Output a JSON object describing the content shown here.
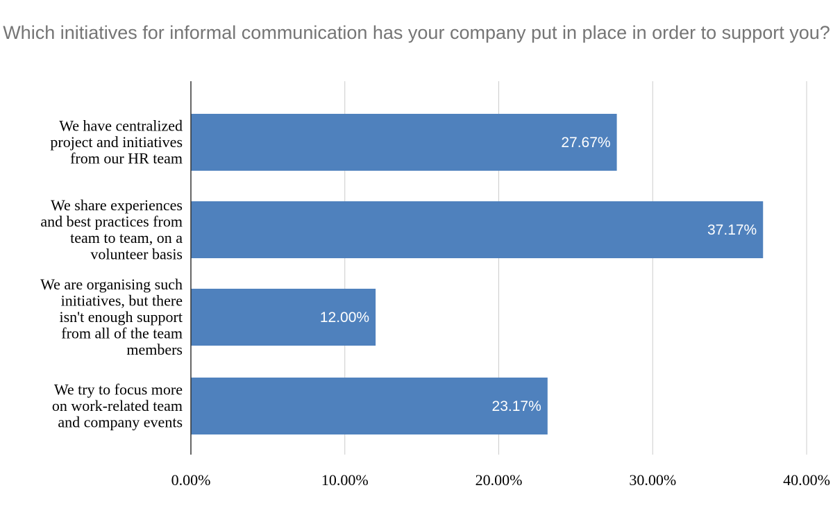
{
  "chart_data": {
    "type": "bar",
    "orientation": "horizontal",
    "title": "Which initiatives for informal communication has your company put in place in order to support you?",
    "categories": [
      "We have centralized project and initiatives from our HR team",
      "We share experiences and best practices from team to team, on a volunteer basis",
      "We are organising such initiatives, but there isn't enough support from all of the team members",
      "We try to focus more on work-related team and company events"
    ],
    "category_lines": [
      [
        "We have centralized",
        "project and initiatives",
        "from our HR team"
      ],
      [
        "We share experiences",
        "and best practices from",
        "team to team, on a",
        "volunteer basis"
      ],
      [
        "We are organising such",
        "initiatives, but there",
        "isn't enough support",
        "from all of the team",
        "members"
      ],
      [
        "We try to focus more",
        "on work-related team",
        "and company events"
      ]
    ],
    "values": [
      27.67,
      37.17,
      12.0,
      23.17
    ],
    "data_labels": [
      "27.67%",
      "37.17%",
      "12.00%",
      "23.17%"
    ],
    "xlim": [
      0,
      40
    ],
    "ticks": [
      0,
      10,
      20,
      30,
      40
    ],
    "tick_labels": [
      "0.00%",
      "10.00%",
      "20.00%",
      "30.00%",
      "40.00%"
    ],
    "grid": true,
    "colors": {
      "bar": "#4f81bd",
      "grid": "#cccccc",
      "axis": "#333333",
      "title": "#757575"
    }
  }
}
